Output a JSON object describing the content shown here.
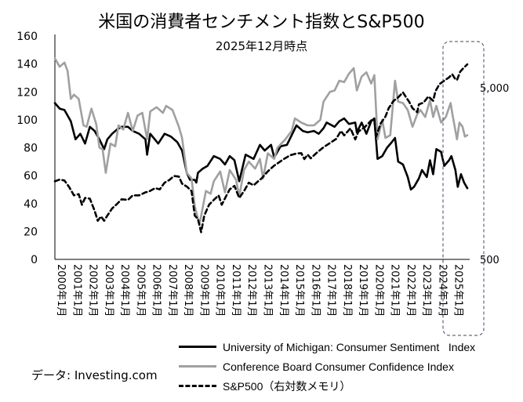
{
  "chart_data": {
    "type": "line",
    "title": "米国の消費者センチメント指数とS&P500",
    "subtitle": "2025年12月時点",
    "x_tick_labels": [
      "2000年1月",
      "2001年1月",
      "2002年1月",
      "2003年1月",
      "2004年1月",
      "2005年1月",
      "2006年1月",
      "2007年1月",
      "2008年1月",
      "2009年1月",
      "2010年1月",
      "2011年1月",
      "2012年1月",
      "2013年1月",
      "2014年1月",
      "2015年1月",
      "2016年1月",
      "2017年1月",
      "2018年1月",
      "2019年1月",
      "2020年1月",
      "2021年1月",
      "2022年1月",
      "2023年1月",
      "2024年1月",
      "2025年1月"
    ],
    "x_range": [
      2000.0,
      2026.0
    ],
    "y_left": {
      "ticks": [
        "0",
        "20",
        "40",
        "60",
        "80",
        "100",
        "120",
        "140",
        "160"
      ],
      "range": [
        0,
        160
      ]
    },
    "y_right": {
      "ticks": [
        "500",
        "5,000"
      ],
      "scale": "log",
      "range_note": "右対数メモリ"
    },
    "series": [
      {
        "name": "University of Michigan: Consumer Sentiment   Index",
        "color": "#000000",
        "style": "solid",
        "points": [
          [
            2000.0,
            112
          ],
          [
            2000.3,
            108
          ],
          [
            2000.6,
            107
          ],
          [
            2001.0,
            99
          ],
          [
            2001.3,
            86
          ],
          [
            2001.6,
            90
          ],
          [
            2001.9,
            83
          ],
          [
            2002.2,
            95
          ],
          [
            2002.5,
            92
          ],
          [
            2002.8,
            86
          ],
          [
            2003.1,
            79
          ],
          [
            2003.3,
            86
          ],
          [
            2003.6,
            90
          ],
          [
            2003.9,
            93
          ],
          [
            2004.2,
            95
          ],
          [
            2004.6,
            95
          ],
          [
            2004.9,
            92
          ],
          [
            2005.3,
            90
          ],
          [
            2005.7,
            86
          ],
          [
            2005.8,
            75
          ],
          [
            2006.0,
            90
          ],
          [
            2006.5,
            83
          ],
          [
            2006.9,
            90
          ],
          [
            2007.3,
            88
          ],
          [
            2007.7,
            84
          ],
          [
            2008.0,
            78
          ],
          [
            2008.3,
            62
          ],
          [
            2008.5,
            57
          ],
          [
            2008.8,
            57
          ],
          [
            2008.9,
            55
          ],
          [
            2009.0,
            62
          ],
          [
            2009.3,
            65
          ],
          [
            2009.6,
            67
          ],
          [
            2010.0,
            74
          ],
          [
            2010.4,
            72
          ],
          [
            2010.7,
            68
          ],
          [
            2011.0,
            74
          ],
          [
            2011.3,
            71
          ],
          [
            2011.6,
            56
          ],
          [
            2012.0,
            75
          ],
          [
            2012.5,
            72
          ],
          [
            2012.9,
            82
          ],
          [
            2013.2,
            78
          ],
          [
            2013.6,
            82
          ],
          [
            2013.8,
            73
          ],
          [
            2014.2,
            81
          ],
          [
            2014.6,
            82
          ],
          [
            2014.9,
            89
          ],
          [
            2015.2,
            96
          ],
          [
            2015.6,
            92
          ],
          [
            2015.9,
            91
          ],
          [
            2016.3,
            92
          ],
          [
            2016.6,
            90
          ],
          [
            2016.9,
            94
          ],
          [
            2017.1,
            98
          ],
          [
            2017.6,
            95
          ],
          [
            2017.9,
            99
          ],
          [
            2018.2,
            101
          ],
          [
            2018.5,
            97
          ],
          [
            2018.9,
            98
          ],
          [
            2019.0,
            91
          ],
          [
            2019.3,
            98
          ],
          [
            2019.6,
            90
          ],
          [
            2019.9,
            99
          ],
          [
            2020.1,
            101
          ],
          [
            2020.3,
            72
          ],
          [
            2020.6,
            74
          ],
          [
            2020.9,
            80
          ],
          [
            2021.2,
            84
          ],
          [
            2021.4,
            87
          ],
          [
            2021.6,
            70
          ],
          [
            2021.9,
            68
          ],
          [
            2022.2,
            59
          ],
          [
            2022.4,
            50
          ],
          [
            2022.6,
            52
          ],
          [
            2022.9,
            58
          ],
          [
            2023.1,
            64
          ],
          [
            2023.4,
            59
          ],
          [
            2023.6,
            71
          ],
          [
            2023.8,
            61
          ],
          [
            2024.0,
            79
          ],
          [
            2024.3,
            77
          ],
          [
            2024.5,
            67
          ],
          [
            2024.8,
            71
          ],
          [
            2024.95,
            74
          ],
          [
            2025.2,
            64
          ],
          [
            2025.35,
            52
          ],
          [
            2025.55,
            61
          ],
          [
            2025.75,
            55
          ],
          [
            2025.95,
            51
          ]
        ]
      },
      {
        "name": "Conference Board Consumer Confidence Index",
        "color": "#a0a0a0",
        "style": "solid",
        "points": [
          [
            2000.0,
            144
          ],
          [
            2000.3,
            138
          ],
          [
            2000.6,
            141
          ],
          [
            2000.8,
            135
          ],
          [
            2001.0,
            115
          ],
          [
            2001.2,
            118
          ],
          [
            2001.5,
            115
          ],
          [
            2001.8,
            96
          ],
          [
            2002.0,
            95
          ],
          [
            2002.3,
            108
          ],
          [
            2002.6,
            97
          ],
          [
            2002.8,
            80
          ],
          [
            2003.0,
            79
          ],
          [
            2003.2,
            62
          ],
          [
            2003.5,
            83
          ],
          [
            2003.8,
            81
          ],
          [
            2004.0,
            96
          ],
          [
            2004.3,
            93
          ],
          [
            2004.6,
            105
          ],
          [
            2004.9,
            92
          ],
          [
            2005.2,
            103
          ],
          [
            2005.5,
            105
          ],
          [
            2005.8,
            86
          ],
          [
            2006.0,
            106
          ],
          [
            2006.4,
            109
          ],
          [
            2006.8,
            105
          ],
          [
            2007.0,
            110
          ],
          [
            2007.4,
            107
          ],
          [
            2007.8,
            95
          ],
          [
            2008.0,
            87
          ],
          [
            2008.3,
            62
          ],
          [
            2008.6,
            58
          ],
          [
            2008.8,
            38
          ],
          [
            2009.1,
            25
          ],
          [
            2009.5,
            49
          ],
          [
            2009.8,
            47
          ],
          [
            2010.0,
            56
          ],
          [
            2010.4,
            63
          ],
          [
            2010.7,
            48
          ],
          [
            2011.0,
            64
          ],
          [
            2011.4,
            57
          ],
          [
            2011.6,
            45
          ],
          [
            2011.9,
            64
          ],
          [
            2012.2,
            70
          ],
          [
            2012.6,
            65
          ],
          [
            2012.9,
            72
          ],
          [
            2013.1,
            58
          ],
          [
            2013.4,
            76
          ],
          [
            2013.8,
            72
          ],
          [
            2014.0,
            80
          ],
          [
            2014.5,
            86
          ],
          [
            2014.9,
            92
          ],
          [
            2015.1,
            101
          ],
          [
            2015.5,
            98
          ],
          [
            2015.9,
            96
          ],
          [
            2016.3,
            96
          ],
          [
            2016.7,
            100
          ],
          [
            2016.9,
            113
          ],
          [
            2017.3,
            120
          ],
          [
            2017.6,
            121
          ],
          [
            2017.9,
            128
          ],
          [
            2018.2,
            127
          ],
          [
            2018.5,
            133
          ],
          [
            2018.8,
            137
          ],
          [
            2019.0,
            121
          ],
          [
            2019.3,
            131
          ],
          [
            2019.6,
            134
          ],
          [
            2019.9,
            126
          ],
          [
            2020.1,
            132
          ],
          [
            2020.3,
            86
          ],
          [
            2020.6,
            100
          ],
          [
            2020.8,
            87
          ],
          [
            2021.1,
            89
          ],
          [
            2021.4,
            128
          ],
          [
            2021.6,
            113
          ],
          [
            2021.9,
            112
          ],
          [
            2022.2,
            107
          ],
          [
            2022.5,
            95
          ],
          [
            2022.8,
            104
          ],
          [
            2023.0,
            107
          ],
          [
            2023.3,
            102
          ],
          [
            2023.6,
            114
          ],
          [
            2023.8,
            102
          ],
          [
            2024.0,
            110
          ],
          [
            2024.3,
            98
          ],
          [
            2024.6,
            102
          ],
          [
            2024.9,
            112
          ],
          [
            2025.0,
            105
          ],
          [
            2025.3,
            86
          ],
          [
            2025.45,
            98
          ],
          [
            2025.65,
            95
          ],
          [
            2025.8,
            88
          ],
          [
            2025.95,
            89
          ]
        ]
      },
      {
        "name": "S&P500（右対数メモリ）",
        "color": "#000000",
        "style": "dashed",
        "points": [
          [
            2000.0,
            1425
          ],
          [
            2000.3,
            1460
          ],
          [
            2000.6,
            1440
          ],
          [
            2000.9,
            1320
          ],
          [
            2001.2,
            1180
          ],
          [
            2001.5,
            1200
          ],
          [
            2001.7,
            1040
          ],
          [
            2001.9,
            1140
          ],
          [
            2002.2,
            1130
          ],
          [
            2002.5,
            960
          ],
          [
            2002.7,
            840
          ],
          [
            2002.9,
            890
          ],
          [
            2003.1,
            840
          ],
          [
            2003.3,
            900
          ],
          [
            2003.6,
            990
          ],
          [
            2003.9,
            1050
          ],
          [
            2004.2,
            1120
          ],
          [
            2004.6,
            1110
          ],
          [
            2004.9,
            1180
          ],
          [
            2005.3,
            1180
          ],
          [
            2005.7,
            1230
          ],
          [
            2005.9,
            1240
          ],
          [
            2006.3,
            1300
          ],
          [
            2006.6,
            1280
          ],
          [
            2006.9,
            1400
          ],
          [
            2007.2,
            1450
          ],
          [
            2007.5,
            1530
          ],
          [
            2007.8,
            1520
          ],
          [
            2008.0,
            1380
          ],
          [
            2008.3,
            1330
          ],
          [
            2008.6,
            1250
          ],
          [
            2008.8,
            900
          ],
          [
            2009.0,
            860
          ],
          [
            2009.2,
            720
          ],
          [
            2009.4,
            900
          ],
          [
            2009.7,
            1040
          ],
          [
            2010.0,
            1110
          ],
          [
            2010.3,
            1180
          ],
          [
            2010.5,
            1040
          ],
          [
            2010.8,
            1180
          ],
          [
            2011.0,
            1280
          ],
          [
            2011.3,
            1340
          ],
          [
            2011.6,
            1140
          ],
          [
            2011.9,
            1250
          ],
          [
            2012.2,
            1400
          ],
          [
            2012.5,
            1350
          ],
          [
            2012.8,
            1430
          ],
          [
            2013.0,
            1480
          ],
          [
            2013.4,
            1630
          ],
          [
            2013.8,
            1760
          ],
          [
            2014.0,
            1810
          ],
          [
            2014.4,
            1920
          ],
          [
            2014.8,
            2020
          ],
          [
            2015.2,
            2070
          ],
          [
            2015.5,
            2080
          ],
          [
            2015.7,
            1920
          ],
          [
            2015.9,
            2040
          ],
          [
            2016.1,
            1940
          ],
          [
            2016.5,
            2100
          ],
          [
            2016.9,
            2250
          ],
          [
            2017.3,
            2380
          ],
          [
            2017.7,
            2520
          ],
          [
            2018.0,
            2800
          ],
          [
            2018.2,
            2640
          ],
          [
            2018.6,
            2900
          ],
          [
            2018.9,
            2500
          ],
          [
            2019.1,
            2780
          ],
          [
            2019.5,
            2950
          ],
          [
            2019.9,
            3230
          ],
          [
            2020.1,
            3270
          ],
          [
            2020.2,
            2580
          ],
          [
            2020.5,
            3100
          ],
          [
            2020.8,
            3400
          ],
          [
            2021.0,
            3800
          ],
          [
            2021.3,
            4180
          ],
          [
            2021.6,
            4400
          ],
          [
            2021.9,
            4700
          ],
          [
            2022.1,
            4400
          ],
          [
            2022.3,
            4130
          ],
          [
            2022.5,
            3800
          ],
          [
            2022.8,
            3600
          ],
          [
            2022.9,
            4000
          ],
          [
            2023.2,
            4100
          ],
          [
            2023.5,
            4450
          ],
          [
            2023.8,
            4200
          ],
          [
            2023.95,
            4780
          ],
          [
            2024.2,
            5250
          ],
          [
            2024.5,
            5500
          ],
          [
            2024.8,
            5750
          ],
          [
            2025.0,
            6000
          ],
          [
            2025.2,
            5600
          ],
          [
            2025.3,
            5550
          ],
          [
            2025.5,
            6200
          ],
          [
            2025.7,
            6500
          ],
          [
            2025.95,
            6850
          ]
        ]
      }
    ],
    "annotation": "dashed highlight box around 2025"
  },
  "source": "データ: Investing.com"
}
